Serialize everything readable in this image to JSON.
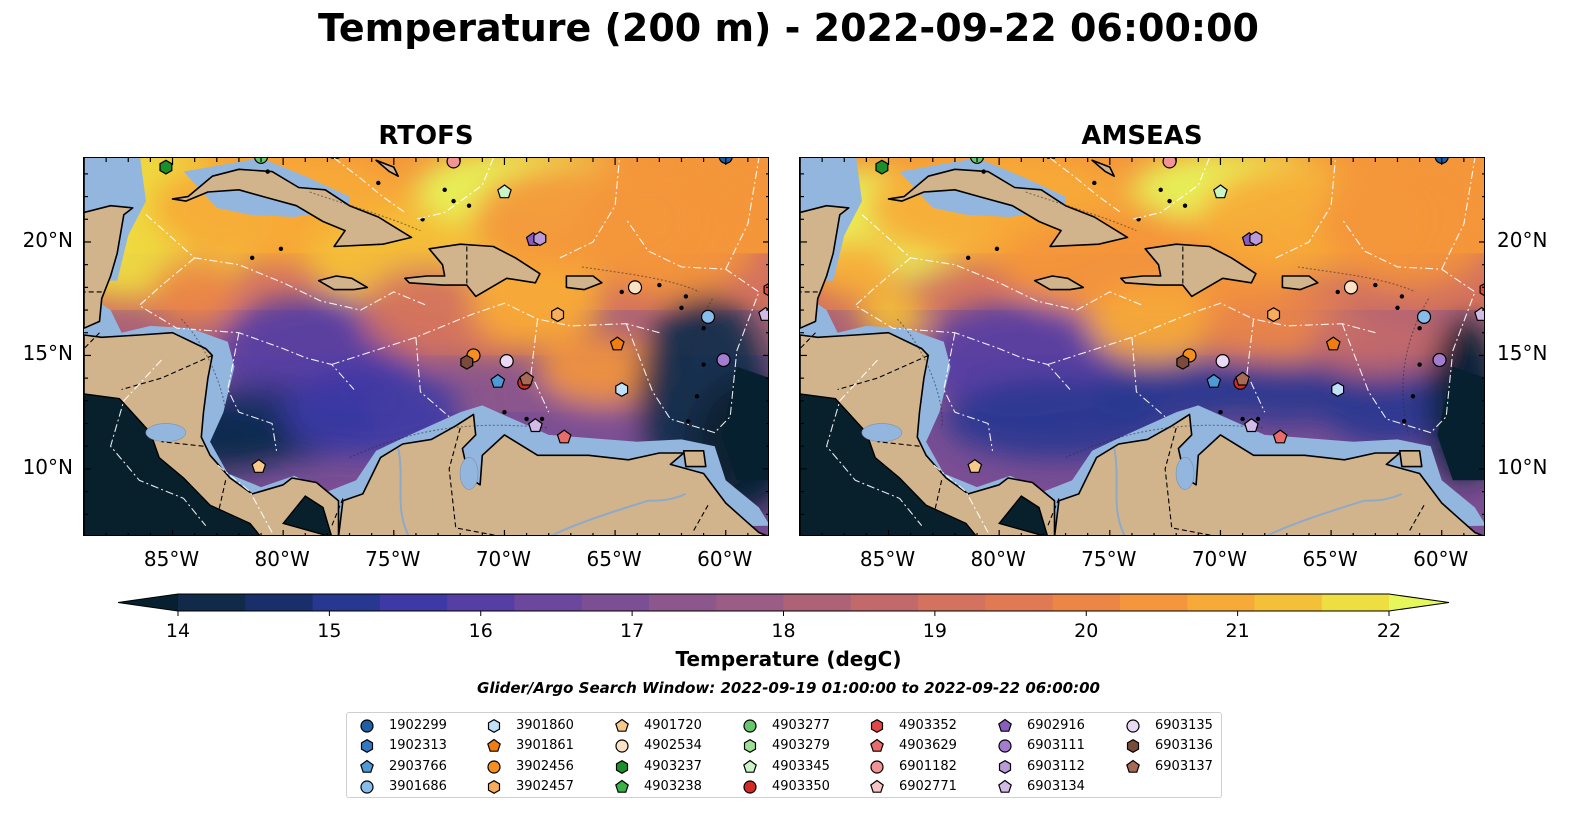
{
  "title": "Temperature (200 m) - 2022-09-22 06:00:00",
  "panels": [
    {
      "title": "RTOFS"
    },
    {
      "title": "AMSEAS"
    }
  ],
  "axes": {
    "lon_ticks": [
      "85°W",
      "80°W",
      "75°W",
      "70°W",
      "65°W",
      "60°W"
    ],
    "lon_values": [
      -85,
      -80,
      -75,
      -70,
      -65,
      -60
    ],
    "lat_ticks": [
      "20°N",
      "15°N",
      "10°N"
    ],
    "lat_values": [
      20,
      15,
      10
    ],
    "lon_range": [
      -89,
      -58
    ],
    "lat_range": [
      7,
      23.7
    ]
  },
  "colorbar": {
    "label": "Temperature (degC)",
    "ticks": [
      "14",
      "15",
      "16",
      "17",
      "18",
      "19",
      "20",
      "21",
      "22"
    ],
    "range": [
      14,
      22
    ],
    "colors": [
      "#07202f",
      "#112a4a",
      "#182f6b",
      "#283790",
      "#3d3aa5",
      "#553ea4",
      "#6b479e",
      "#7c4f94",
      "#8c578c",
      "#9b5d85",
      "#ad6277",
      "#c1696b",
      "#d3725f",
      "#e07a54",
      "#ec8646",
      "#f4963b",
      "#f7aa38",
      "#f4c038",
      "#eede41",
      "#e5f75a"
    ],
    "extend": "both"
  },
  "search_window": "Glider/Argo Search Window: 2022-09-19 01:00:00 to 2022-09-22 06:00:00",
  "legend": [
    {
      "id": "1902299",
      "marker": "circle",
      "color": "#1f5fa6"
    },
    {
      "id": "1902313",
      "marker": "hexagon",
      "color": "#3478c4"
    },
    {
      "id": "2903766",
      "marker": "pentagon",
      "color": "#4c9bd8"
    },
    {
      "id": "3901686",
      "marker": "circle",
      "color": "#86bdeb"
    },
    {
      "id": "3901860",
      "marker": "hexagon",
      "color": "#bfe0f7"
    },
    {
      "id": "3901861",
      "marker": "pentagon",
      "color": "#f07d10"
    },
    {
      "id": "3902456",
      "marker": "circle",
      "color": "#f5901e"
    },
    {
      "id": "3902457",
      "marker": "hexagon",
      "color": "#f8ad5c"
    },
    {
      "id": "4901720",
      "marker": "pentagon",
      "color": "#f9c98a"
    },
    {
      "id": "4902534",
      "marker": "circle",
      "color": "#fbe2c4"
    },
    {
      "id": "4903237",
      "marker": "hexagon",
      "color": "#1b8f2a"
    },
    {
      "id": "4903238",
      "marker": "pentagon",
      "color": "#3bb246"
    },
    {
      "id": "4903277",
      "marker": "circle",
      "color": "#66c66b"
    },
    {
      "id": "4903279",
      "marker": "hexagon",
      "color": "#9ee093"
    },
    {
      "id": "4903345",
      "marker": "pentagon",
      "color": "#caf4c3"
    },
    {
      "id": "4903350",
      "marker": "circle",
      "color": "#d42a26"
    },
    {
      "id": "4903352",
      "marker": "hexagon",
      "color": "#e04848"
    },
    {
      "id": "4903629",
      "marker": "pentagon",
      "color": "#ea6b6b"
    },
    {
      "id": "6901182",
      "marker": "circle",
      "color": "#f29494"
    },
    {
      "id": "6902771",
      "marker": "pentagon",
      "color": "#f8c5c5"
    },
    {
      "id": "6902916",
      "marker": "pentagon",
      "color": "#8a5cbf"
    },
    {
      "id": "6903111",
      "marker": "circle",
      "color": "#a47ccf"
    },
    {
      "id": "6903112",
      "marker": "hexagon",
      "color": "#bb9ad9"
    },
    {
      "id": "6903134",
      "marker": "pentagon",
      "color": "#d2bbe6"
    },
    {
      "id": "6903135",
      "marker": "circle",
      "color": "#ead9f4"
    },
    {
      "id": "6903136",
      "marker": "hexagon",
      "color": "#7a4a3a"
    },
    {
      "id": "6903137",
      "marker": "pentagon",
      "color": "#a86a54"
    }
  ],
  "platforms": [
    {
      "id": "4903237",
      "lon": -85.3,
      "lat": 23.3
    },
    {
      "id": "4903277",
      "lon": -81.0,
      "lat": 23.75
    },
    {
      "id": "6901182",
      "lon": -72.3,
      "lat": 23.55
    },
    {
      "id": "1902299",
      "lon": -60.0,
      "lat": 23.75
    },
    {
      "id": "4903345",
      "lon": -70.0,
      "lat": 22.2
    },
    {
      "id": "6902916",
      "lon": -68.7,
      "lat": 20.1
    },
    {
      "id": "6903112",
      "lon": -68.4,
      "lat": 20.15
    },
    {
      "id": "4902534",
      "lon": -64.1,
      "lat": 18.0
    },
    {
      "id": "4903352",
      "lon": -58.0,
      "lat": 17.9
    },
    {
      "id": "3902457",
      "lon": -67.6,
      "lat": 16.8
    },
    {
      "id": "3901686",
      "lon": -60.8,
      "lat": 16.7
    },
    {
      "id": "6903134",
      "lon": -58.2,
      "lat": 16.8
    },
    {
      "id": "3901861",
      "lon": -64.9,
      "lat": 15.5
    },
    {
      "id": "6903111",
      "lon": -60.1,
      "lat": 14.8
    },
    {
      "id": "3902456",
      "lon": -71.4,
      "lat": 15.0
    },
    {
      "id": "6903136",
      "lon": -71.7,
      "lat": 14.7
    },
    {
      "id": "6903135",
      "lon": -69.9,
      "lat": 14.75
    },
    {
      "id": "2903766",
      "lon": -70.3,
      "lat": 13.85
    },
    {
      "id": "4903350",
      "lon": -69.1,
      "lat": 13.8
    },
    {
      "id": "6903137",
      "lon": -69.0,
      "lat": 13.95
    },
    {
      "id": "3901860",
      "lon": -64.7,
      "lat": 13.5
    },
    {
      "id": "6903134",
      "lon": -68.6,
      "lat": 11.9
    },
    {
      "id": "4903629",
      "lon": -67.3,
      "lat": 11.4
    },
    {
      "id": "4901720",
      "lon": -81.1,
      "lat": 10.1
    }
  ]
}
